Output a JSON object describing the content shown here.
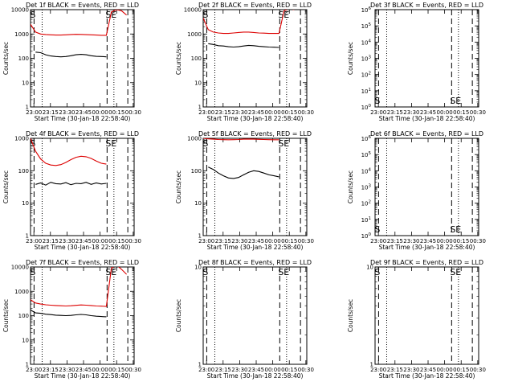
{
  "chart_data": {
    "type": "line",
    "layout": "3x3 grid",
    "x_tick_labels": [
      "23:00",
      "23:15",
      "23:30",
      "23:45",
      "00:00",
      "00:15",
      "00:30"
    ],
    "x_range_minutes": [
      0,
      41
    ],
    "xlabel": "Start Time (30-Jan-18 22:58:40)",
    "ylabel": "Counts/sec",
    "marker_labels": {
      "start": "S",
      "end": "SE"
    },
    "markers_minutes": {
      "dashed": [
        1.4,
        30.3,
        38.5
      ],
      "dotted": [
        4.6,
        33.0
      ]
    },
    "panels": [
      {
        "title": "Det 1f BLACK = Events, RED = LLD",
        "ylim": [
          1,
          10000
        ],
        "y_scale": "log",
        "y_tick_labels": [
          "1",
          "10",
          "100",
          "1000",
          "10000"
        ],
        "series": [
          {
            "name": "Events",
            "color": "#000000",
            "x": [
              2,
              4,
              6,
              8,
              10,
              12,
              14,
              16,
              18,
              20,
              22,
              24,
              26,
              28,
              30
            ],
            "y": [
              180,
              170,
              140,
              125,
              118,
              115,
              118,
              128,
              140,
              145,
              140,
              128,
              120,
              118,
              115
            ]
          },
          {
            "name": "LLD",
            "color": "#dd0000",
            "x": [
              0,
              2,
              4,
              6,
              8,
              10,
              12,
              14,
              16,
              18,
              20,
              22,
              24,
              26,
              28,
              30,
              32,
              34,
              36,
              38
            ],
            "y": [
              2500,
              1200,
              1000,
              950,
              920,
              900,
              900,
              920,
              950,
              970,
              960,
              940,
              920,
              900,
              880,
              880,
              8000,
              10000,
              9000,
              6000
            ]
          }
        ]
      },
      {
        "title": "Det 2f BLACK = Events, RED = LLD",
        "ylim": [
          1,
          10000
        ],
        "y_scale": "log",
        "y_tick_labels": [
          "1",
          "10",
          "100",
          "1000",
          "10000"
        ],
        "series": [
          {
            "name": "Events",
            "color": "#000000",
            "x": [
              2,
              4,
              6,
              8,
              10,
              12,
              14,
              16,
              18,
              20,
              22,
              24,
              26,
              28,
              30
            ],
            "y": [
              400,
              370,
              330,
              320,
              300,
              290,
              300,
              320,
              340,
              330,
              310,
              300,
              290,
              285,
              280
            ]
          },
          {
            "name": "LLD",
            "color": "#dd0000",
            "x": [
              0,
              2,
              4,
              6,
              8,
              10,
              12,
              14,
              16,
              18,
              20,
              22,
              24,
              26,
              28,
              30,
              32,
              34,
              36
            ],
            "y": [
              4500,
              1500,
              1200,
              1100,
              1050,
              1050,
              1100,
              1150,
              1200,
              1200,
              1150,
              1100,
              1080,
              1050,
              1050,
              1050,
              9000,
              11000,
              10000
            ]
          }
        ]
      },
      {
        "title": "Det 3f BLACK = Events, RED = LLD",
        "ylim": [
          1,
          1000000.0
        ],
        "y_scale": "log",
        "y_tick_labels": [
          "10^0",
          "10^1",
          "10^2",
          "10^3",
          "10^4",
          "10^5",
          "10^6"
        ],
        "series": []
      },
      {
        "title": "Det 4f BLACK = Events, RED = LLD",
        "ylim": [
          1,
          1000
        ],
        "y_scale": "log",
        "y_tick_labels": [
          "1",
          "10",
          "100",
          "1000"
        ],
        "series": [
          {
            "name": "Events",
            "color": "#000000",
            "x": [
              2,
              4,
              6,
              8,
              10,
              12,
              14,
              16,
              18,
              20,
              22,
              24,
              26,
              28,
              30
            ],
            "y": [
              38,
              42,
              36,
              44,
              40,
              39,
              43,
              37,
              41,
              40,
              44,
              38,
              42,
              39,
              41
            ]
          },
          {
            "name": "LLD",
            "color": "#dd0000",
            "x": [
              0,
              2,
              4,
              6,
              8,
              10,
              12,
              14,
              16,
              18,
              20,
              22,
              24,
              26,
              28,
              30
            ],
            "y": [
              1000,
              400,
              230,
              170,
              150,
              145,
              155,
              180,
              220,
              260,
              280,
              270,
              240,
              200,
              170,
              160
            ]
          }
        ]
      },
      {
        "title": "Det 5f BLACK = Events, RED = LLD",
        "ylim": [
          1,
          1000
        ],
        "y_scale": "log",
        "y_tick_labels": [
          "1",
          "10",
          "100",
          "1000"
        ],
        "series": [
          {
            "name": "Events",
            "color": "#000000",
            "x": [
              2,
              4,
              6,
              8,
              10,
              12,
              14,
              16,
              18,
              20,
              22,
              24,
              26,
              28,
              30
            ],
            "y": [
              130,
              110,
              85,
              70,
              60,
              58,
              62,
              75,
              90,
              100,
              95,
              85,
              75,
              70,
              65
            ]
          },
          {
            "name": "LLD",
            "color": "#dd0000",
            "x": [
              0,
              2,
              4,
              6,
              8,
              10,
              12,
              14,
              16,
              18,
              20,
              22,
              24,
              26,
              28,
              30
            ],
            "y": [
              1000,
              960,
              940,
              920,
              910,
              900,
              905,
              920,
              940,
              950,
              940,
              930,
              920,
              910,
              900,
              900
            ]
          }
        ]
      },
      {
        "title": "Det 6f BLACK = Events, RED = LLD",
        "ylim": [
          1,
          1000000.0
        ],
        "y_scale": "log",
        "y_tick_labels": [
          "10^0",
          "10^1",
          "10^2",
          "10^3",
          "10^4",
          "10^5",
          "10^6"
        ],
        "series": []
      },
      {
        "title": "Det 7f BLACK = Events, RED = LLD",
        "ylim": [
          1,
          10000
        ],
        "y_scale": "log",
        "y_tick_labels": [
          "1",
          "10",
          "100",
          "1000",
          "10000"
        ],
        "series": [
          {
            "name": "Events",
            "color": "#000000",
            "x": [
              0,
              2,
              4,
              6,
              8,
              10,
              12,
              14,
              16,
              18,
              20,
              22,
              24,
              26,
              28,
              30
            ],
            "y": [
              170,
              130,
              125,
              115,
              110,
              105,
              102,
              100,
              102,
              108,
              112,
              108,
              100,
              95,
              92,
              90
            ]
          },
          {
            "name": "LLD",
            "color": "#dd0000",
            "x": [
              0,
              2,
              4,
              6,
              8,
              10,
              12,
              14,
              16,
              18,
              20,
              22,
              24,
              26,
              28,
              30,
              32,
              34,
              36,
              38
            ],
            "y": [
              450,
              330,
              300,
              280,
              270,
              260,
              255,
              250,
              255,
              265,
              275,
              270,
              260,
              250,
              245,
              240,
              9000,
              12000,
              8000,
              5000
            ]
          }
        ]
      },
      {
        "title": "Det 8f BLACK = Events, RED = LLD",
        "ylim": [
          1,
          10
        ],
        "y_scale": "log",
        "y_tick_labels": [
          "1",
          "10"
        ],
        "series": []
      },
      {
        "title": "Det 9f BLACK = Events, RED = LLD",
        "ylim": [
          1,
          10
        ],
        "y_scale": "log",
        "y_tick_labels": [
          "1",
          "10"
        ],
        "series": []
      }
    ]
  }
}
